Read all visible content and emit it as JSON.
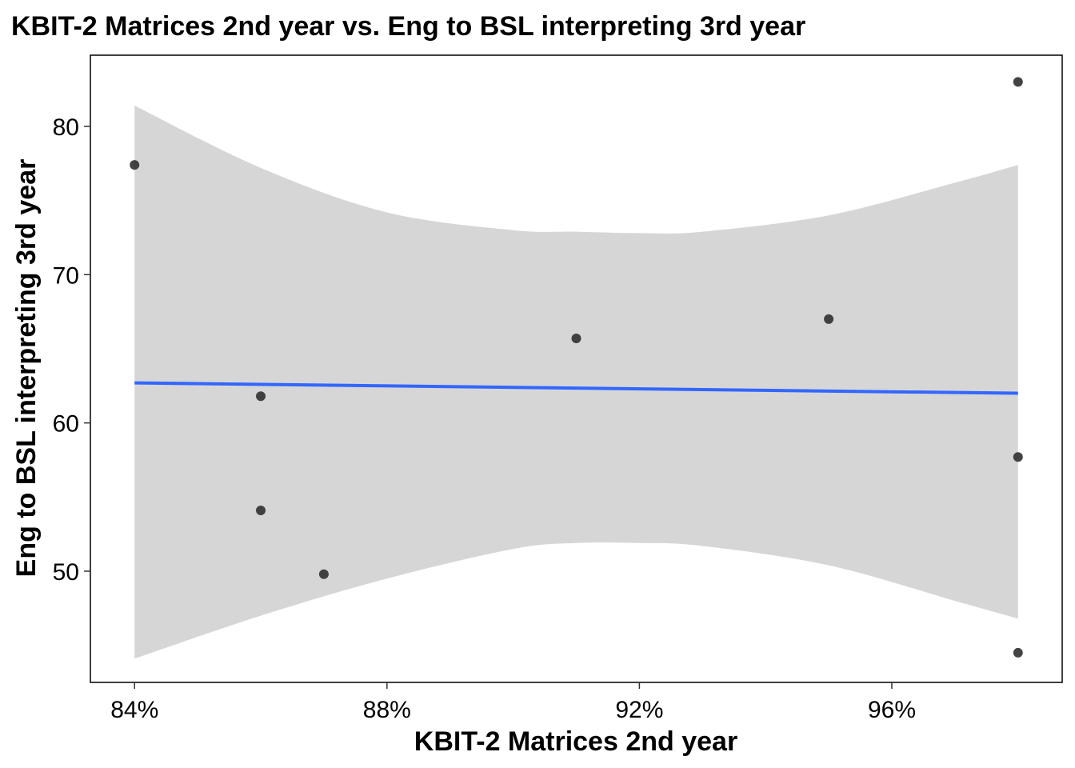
{
  "chart_data": {
    "type": "scatter",
    "title": "KBIT-2 Matrices 2nd year vs. Eng to BSL interpreting 3rd year",
    "xlabel": "KBIT-2 Matrices 2nd year",
    "ylabel": "Eng to BSL interpreting 3rd year",
    "xlim": [
      0.833,
      0.987
    ],
    "ylim": [
      42.5,
      84.8
    ],
    "x_ticks": [
      {
        "value": 0.84,
        "label": "84%"
      },
      {
        "value": 0.88,
        "label": "88%"
      },
      {
        "value": 0.92,
        "label": "92%"
      },
      {
        "value": 0.96,
        "label": "96%"
      }
    ],
    "y_ticks": [
      {
        "value": 50,
        "label": "50"
      },
      {
        "value": 60,
        "label": "60"
      },
      {
        "value": 70,
        "label": "70"
      },
      {
        "value": 80,
        "label": "80"
      }
    ],
    "points": [
      {
        "x": 0.84,
        "y": 77.4
      },
      {
        "x": 0.86,
        "y": 61.8
      },
      {
        "x": 0.86,
        "y": 54.1
      },
      {
        "x": 0.87,
        "y": 49.8
      },
      {
        "x": 0.91,
        "y": 65.7
      },
      {
        "x": 0.95,
        "y": 67.0
      },
      {
        "x": 0.98,
        "y": 83.0
      },
      {
        "x": 0.98,
        "y": 57.7
      },
      {
        "x": 0.98,
        "y": 44.5
      }
    ],
    "trend_line": {
      "x": [
        0.84,
        0.98
      ],
      "y": [
        62.7,
        62.0
      ]
    },
    "confidence_band": {
      "x": [
        0.84,
        0.86,
        0.88,
        0.9,
        0.91,
        0.92,
        0.93,
        0.95,
        0.97,
        0.98
      ],
      "upper": [
        81.4,
        77.2,
        74.2,
        73.0,
        72.9,
        72.8,
        72.9,
        74.0,
        76.2,
        77.4
      ],
      "lower": [
        44.1,
        47.0,
        49.5,
        51.5,
        51.9,
        51.9,
        51.7,
        50.4,
        48.0,
        46.8
      ]
    },
    "grid": false,
    "legend": "none",
    "colors": {
      "point": "#333333",
      "trend": "#3366ff",
      "band": "#d6d6d6",
      "panel_border": "#000000"
    }
  }
}
